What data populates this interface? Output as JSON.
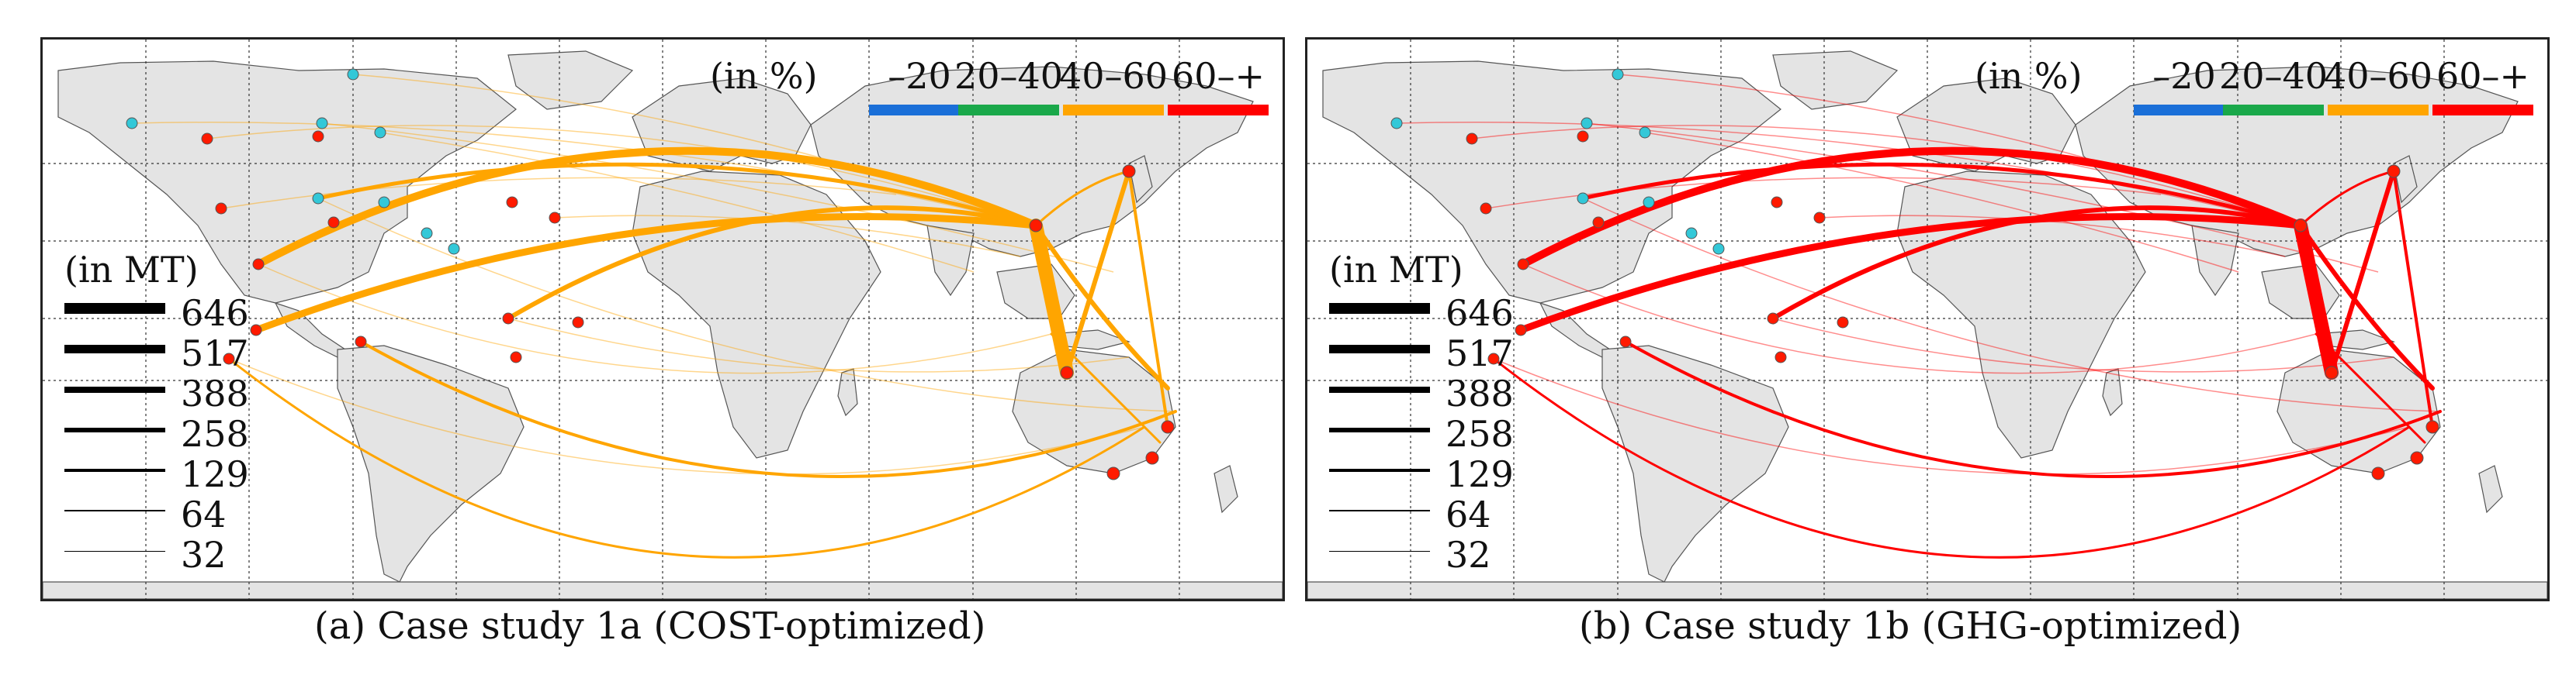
{
  "colors": {
    "ocean": "#ffffff",
    "land": "#e4e4e4",
    "coast": "#555555",
    "grid": "#333333",
    "node_red": "#ff1a00",
    "node_cyan": "#33c8d8",
    "band_0_20": "#1a6fd8",
    "band_20_40": "#1aa84a",
    "band_40_60": "#ffa500",
    "band_60_plus": "#ff0000"
  },
  "color_legend": {
    "unit_label": "(in %)",
    "bands": [
      {
        "label": "–20",
        "color": "#1a6fd8"
      },
      {
        "label": "20–40",
        "color": "#1aa84a"
      },
      {
        "label": "40–60",
        "color": "#ffa500"
      },
      {
        "label": "60–+",
        "color": "#ff0000"
      }
    ]
  },
  "width_legend": {
    "unit_label": "(in MT)",
    "values": [
      "646",
      "517",
      "388",
      "258",
      "129",
      "64",
      "32"
    ]
  },
  "panels": [
    {
      "id": "a",
      "caption": "(a) Case study 1a (COST-optimized)",
      "main_color": "#ffa500"
    },
    {
      "id": "b",
      "caption": "(b) Case study 1b (GHG-optimized)",
      "main_color": "#ff0000"
    }
  ]
}
